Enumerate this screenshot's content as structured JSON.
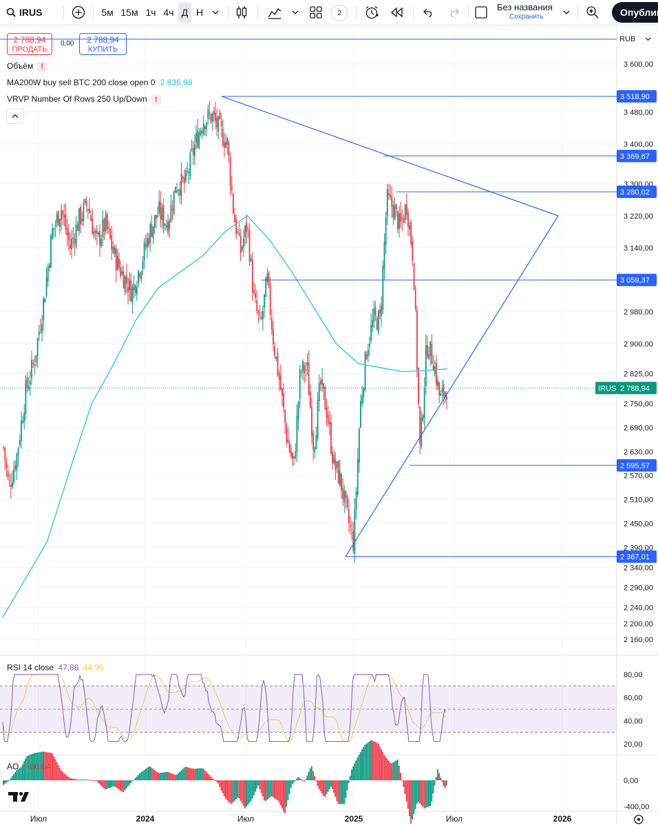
{
  "toolbar": {
    "symbol": "IRUS",
    "intervals": [
      "5м",
      "15м",
      "1ч",
      "4ч",
      "Д",
      "Н"
    ],
    "active_interval": "Д",
    "indicators_count": "2",
    "layout_title": "Без названия",
    "save_label": "Сохранить",
    "publish_label": "Опублико"
  },
  "trade": {
    "sell_price": "2 788,94",
    "sell_label": "ПРОДАТЬ",
    "spread": "0,00",
    "buy_price": "2 788,94",
    "buy_label": "КУПИТЬ"
  },
  "currency": "RUB",
  "legends": {
    "volume": "Объём",
    "ma": "MA200W buy sell BTC 200 close open 0",
    "ma_value": "2 836,98",
    "vrvp": "VRVP Number Of Rows 250 Up/Down",
    "rsi": "RSI 14 close",
    "rsi_value": "47,86",
    "rsi_ma_value": "44,96",
    "ao": "AO",
    "ao_value": "−80,84"
  },
  "colors": {
    "up": "#089981",
    "down": "#f23645",
    "ma": "#26c6da",
    "lines": "#2962ff",
    "rsi": "#7e57c2",
    "rsi_ma": "#f7c948",
    "price_tag": "#089981"
  },
  "chart_data": [
    {
      "type": "candlestick",
      "symbol": "IRUS",
      "y_ticks": [
        "3 600,00",
        "3 480,00",
        "3 400,00",
        "3 300,00",
        "3 220,00",
        "3 140,00",
        "2 980,00",
        "2 900,00",
        "2 825,00",
        "2 750,00",
        "2 690,00",
        "2 630,00",
        "2 570,00",
        "2 510,00",
        "2 450,00",
        "2 390,00",
        "2 340,00",
        "2 290,00",
        "2 240,00",
        "2 200,00",
        "2 160,00"
      ],
      "x_ticks": [
        "Июл",
        "2024",
        "Июл",
        "2025",
        "Июл",
        "2026"
      ],
      "last_price": 2788.94,
      "last_price_label": "2 788,94",
      "price_tag_symbol": "IRUS",
      "horizontal_levels": [
        {
          "value": 3518.9,
          "label": "3 518,90"
        },
        {
          "value": 3369.67,
          "label": "3 369,67"
        },
        {
          "value": 3280.02,
          "label": "3 280,02"
        },
        {
          "value": 3059.37,
          "label": "3 059,37"
        },
        {
          "value": 2595.57,
          "label": "2 595,57"
        },
        {
          "value": 2367.01,
          "label": "2 367,01"
        }
      ],
      "close_path": [
        [
          0.0,
          2640
        ],
        [
          0.012,
          2540
        ],
        [
          0.03,
          2620
        ],
        [
          0.05,
          2780
        ],
        [
          0.07,
          2860
        ],
        [
          0.09,
          3000
        ],
        [
          0.11,
          3180
        ],
        [
          0.13,
          3240
        ],
        [
          0.15,
          3140
        ],
        [
          0.17,
          3210
        ],
        [
          0.19,
          3250
        ],
        [
          0.21,
          3150
        ],
        [
          0.23,
          3200
        ],
        [
          0.25,
          3120
        ],
        [
          0.27,
          3070
        ],
        [
          0.29,
          3030
        ],
        [
          0.31,
          3100
        ],
        [
          0.33,
          3180
        ],
        [
          0.35,
          3230
        ],
        [
          0.37,
          3200
        ],
        [
          0.39,
          3300
        ],
        [
          0.41,
          3300
        ],
        [
          0.43,
          3390
        ],
        [
          0.45,
          3460
        ],
        [
          0.47,
          3470
        ],
        [
          0.49,
          3430
        ],
        [
          0.505,
          3400
        ],
        [
          0.52,
          3220
        ],
        [
          0.535,
          3130
        ],
        [
          0.55,
          3200
        ],
        [
          0.565,
          3010
        ],
        [
          0.58,
          2940
        ],
        [
          0.595,
          3060
        ],
        [
          0.61,
          2900
        ],
        [
          0.625,
          2790
        ],
        [
          0.64,
          2660
        ],
        [
          0.655,
          2590
        ],
        [
          0.67,
          2830
        ],
        [
          0.685,
          2840
        ],
        [
          0.7,
          2640
        ],
        [
          0.715,
          2800
        ],
        [
          0.73,
          2730
        ],
        [
          0.745,
          2600
        ],
        [
          0.76,
          2560
        ],
        [
          0.775,
          2470
        ],
        [
          0.79,
          2400
        ],
        [
          0.805,
          2740
        ],
        [
          0.82,
          2890
        ],
        [
          0.835,
          2960
        ],
        [
          0.85,
          2960
        ],
        [
          0.865,
          3260
        ],
        [
          0.88,
          3240
        ],
        [
          0.895,
          3190
        ],
        [
          0.91,
          3250
        ],
        [
          0.925,
          3110
        ],
        [
          0.94,
          2630
        ],
        [
          0.955,
          2900
        ],
        [
          0.97,
          2860
        ],
        [
          0.985,
          2760
        ],
        [
          1.0,
          2789
        ]
      ],
      "ma200": [
        [
          0.0,
          2215
        ],
        [
          0.05,
          2310
        ],
        [
          0.1,
          2405
        ],
        [
          0.15,
          2580
        ],
        [
          0.2,
          2750
        ],
        [
          0.25,
          2850
        ],
        [
          0.3,
          2960
        ],
        [
          0.35,
          3040
        ],
        [
          0.4,
          3080
        ],
        [
          0.45,
          3120
        ],
        [
          0.5,
          3180
        ],
        [
          0.55,
          3220
        ],
        [
          0.6,
          3160
        ],
        [
          0.65,
          3080
        ],
        [
          0.7,
          2990
        ],
        [
          0.75,
          2900
        ],
        [
          0.8,
          2850
        ],
        [
          0.85,
          2840
        ],
        [
          0.9,
          2830
        ],
        [
          0.95,
          2833
        ],
        [
          1.0,
          2837
        ]
      ]
    },
    {
      "type": "line",
      "name": "RSI 14 close",
      "y_ticks": [
        "80,00",
        "60,00",
        "40,00",
        "20,00"
      ],
      "band": [
        30,
        70
      ],
      "last": 47.86,
      "ma_last": 44.96
    },
    {
      "type": "bar",
      "name": "AO",
      "y_ticks": [
        "0,00",
        "-400,00"
      ],
      "last": -80.84
    }
  ]
}
